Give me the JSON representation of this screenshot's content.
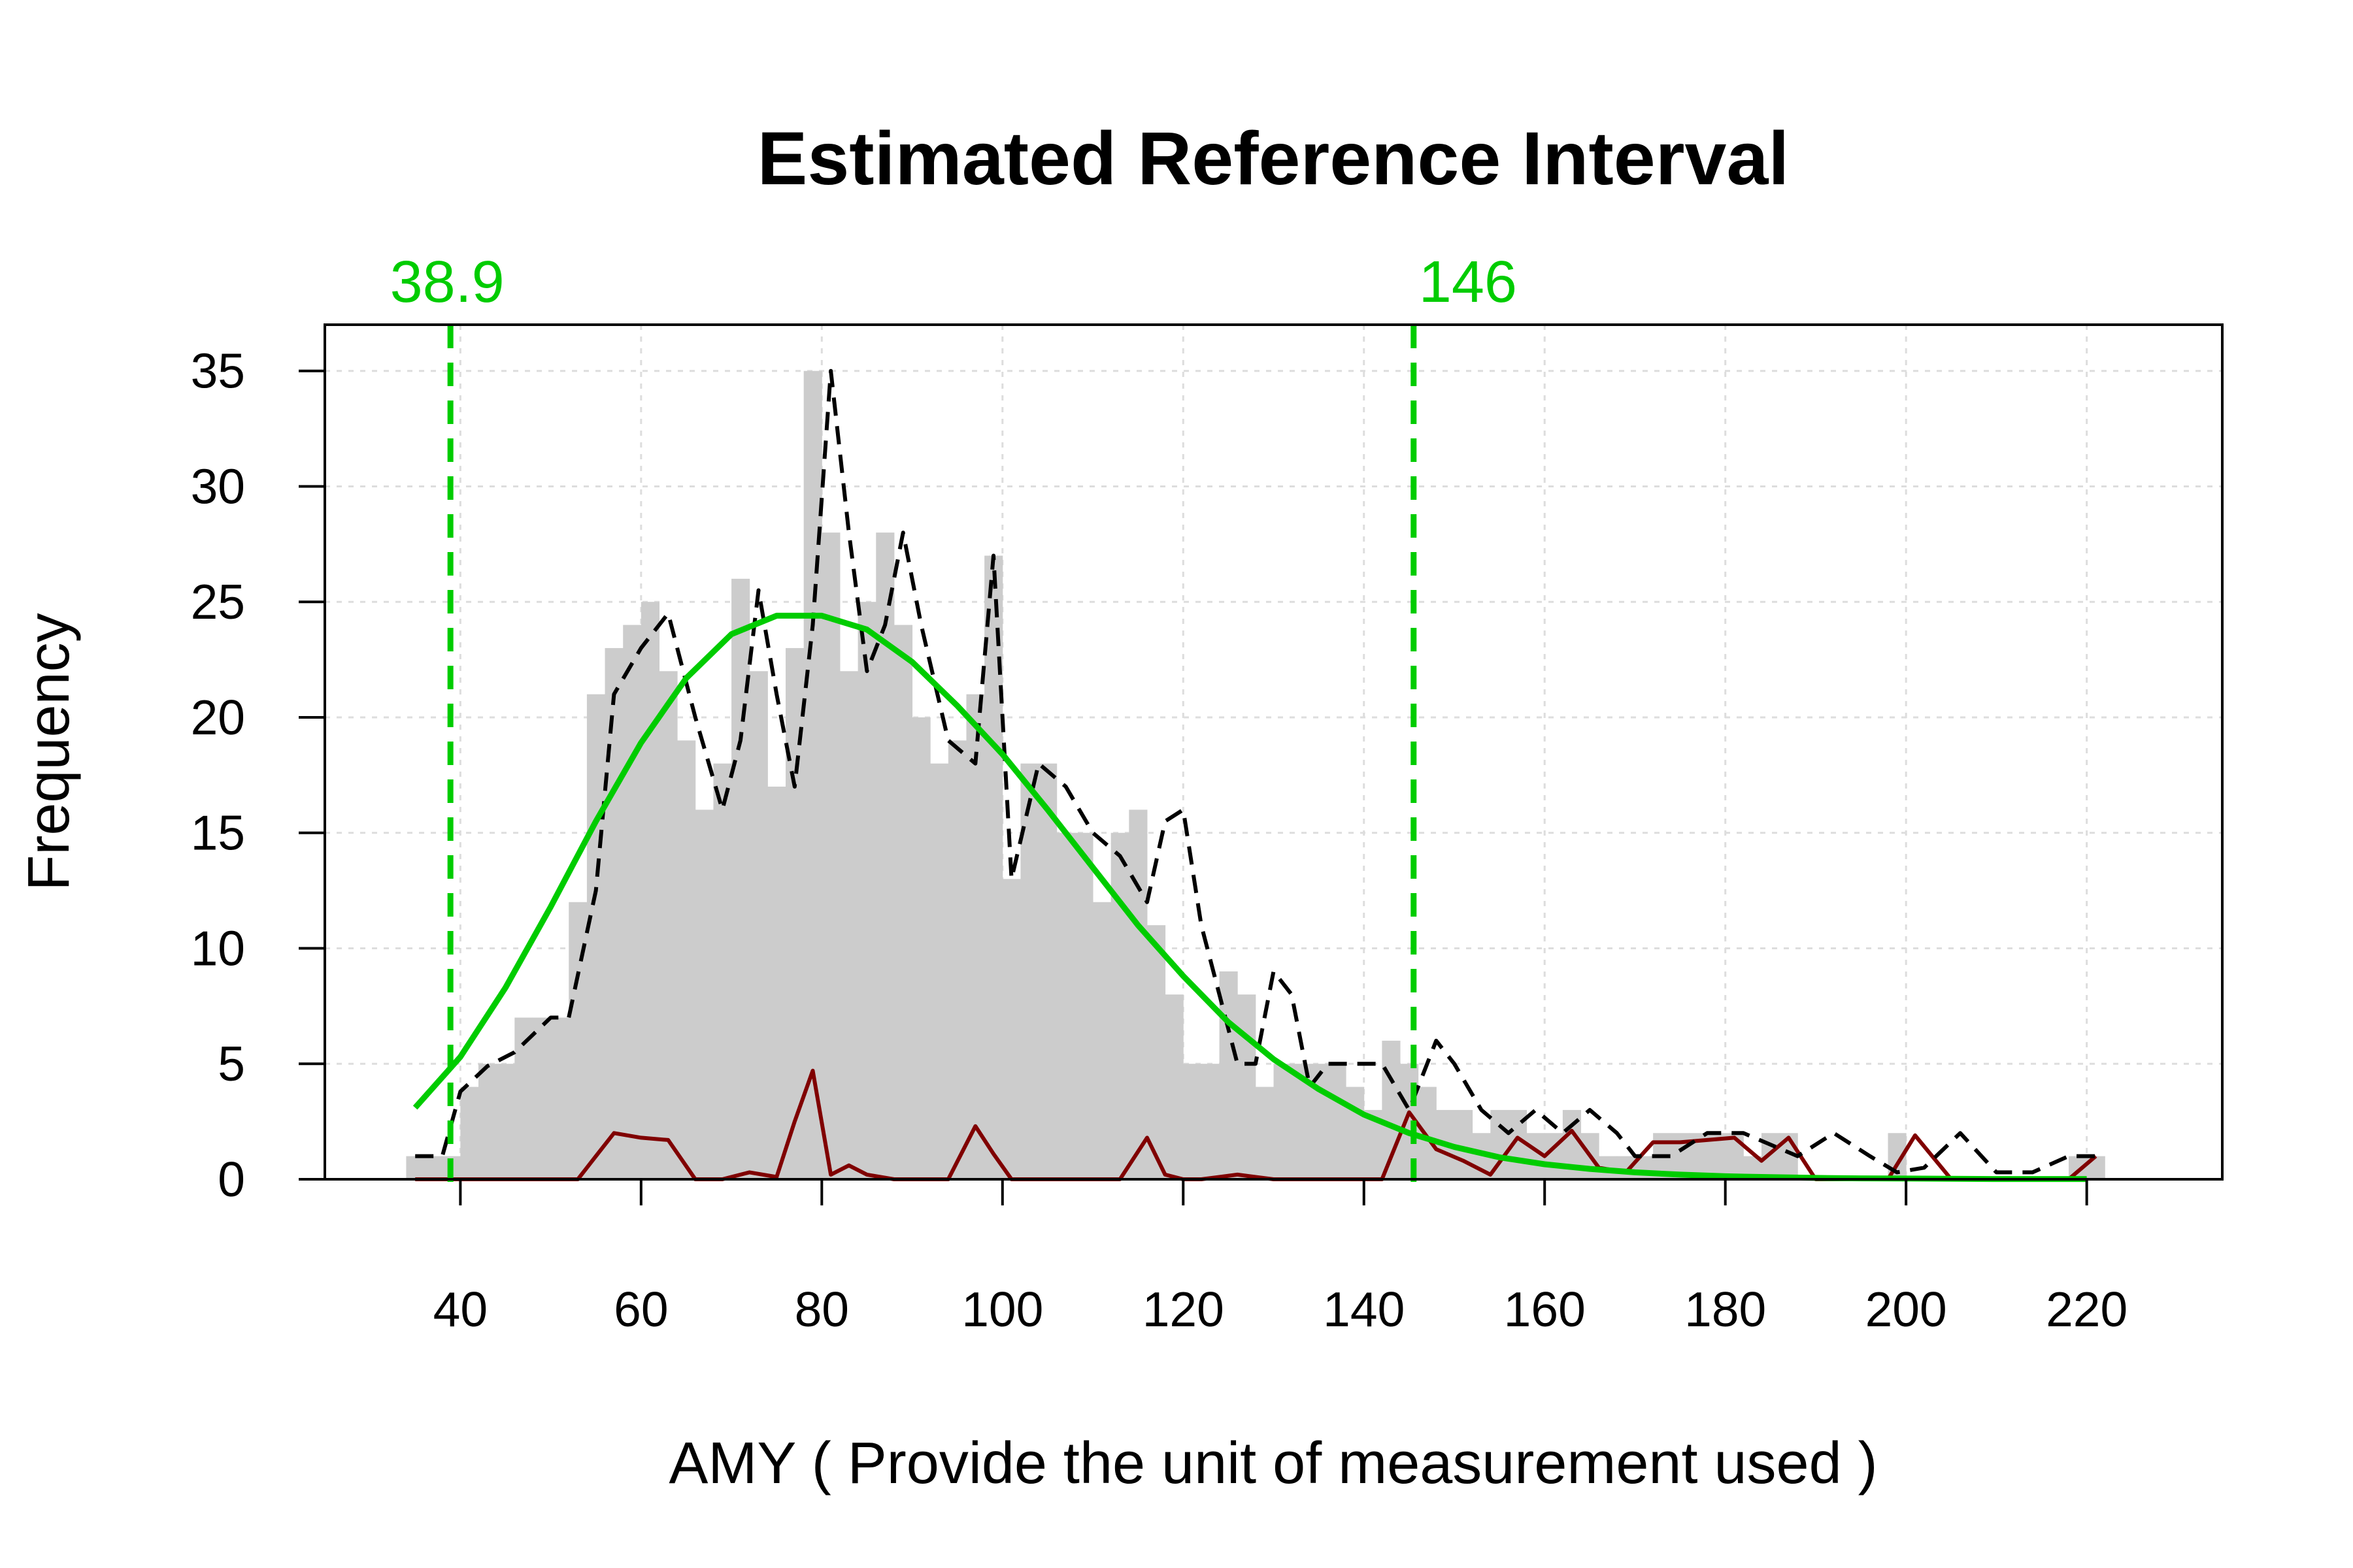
{
  "chart_data": {
    "type": "histogram",
    "title": "Estimated Reference Interval",
    "xlabel": "AMY ( Provide the unit of measurement used )",
    "ylabel": "Frequency",
    "xlim": [
      25,
      235
    ],
    "ylim": [
      0,
      37
    ],
    "x_ticks": [
      40,
      60,
      80,
      100,
      120,
      140,
      160,
      180,
      200,
      220
    ],
    "y_ticks": [
      0,
      5,
      10,
      15,
      20,
      25,
      30,
      35
    ],
    "grid": true,
    "bin_width": 2,
    "colors": {
      "bars": "#cccccc",
      "density": "#000000",
      "fit": "#00cc00",
      "residual": "#800000",
      "limits": "#00cc00"
    },
    "histogram": {
      "bin_centers": [
        35,
        37,
        39,
        41,
        43,
        45,
        47,
        49,
        51,
        53,
        55,
        57,
        59,
        61,
        63,
        65,
        67,
        69,
        71,
        73,
        75,
        77,
        79,
        81,
        83,
        85,
        87,
        89,
        91,
        93,
        95,
        97,
        99,
        101,
        103,
        105,
        107,
        109,
        111,
        113,
        115,
        117,
        119,
        121,
        123,
        125,
        127,
        129,
        131,
        133,
        135,
        137,
        139,
        141,
        143,
        145,
        147,
        149,
        151,
        153,
        155,
        157,
        159,
        161,
        163,
        165,
        167,
        169,
        171,
        173,
        175,
        177,
        179,
        181,
        183,
        185,
        187,
        189,
        191,
        193,
        195,
        197,
        199,
        201,
        203,
        205,
        207,
        209,
        211,
        213,
        215,
        217,
        219,
        221
      ],
      "counts": [
        1,
        1,
        1,
        4,
        5,
        5,
        7,
        7,
        7,
        12,
        21,
        23,
        24,
        25,
        22,
        19,
        16,
        18,
        26,
        22,
        17,
        23,
        35,
        28,
        22,
        25,
        28,
        24,
        20,
        18,
        19,
        21,
        27,
        13,
        18,
        18,
        15,
        15,
        12,
        15,
        16,
        11,
        8,
        5,
        5,
        9,
        8,
        4,
        5,
        5,
        5,
        5,
        4,
        3,
        6,
        5,
        4,
        3,
        3,
        2,
        3,
        3,
        2,
        2,
        3,
        2,
        1,
        1,
        1,
        2,
        2,
        2,
        2,
        2,
        1,
        2,
        2,
        0,
        0,
        0,
        0,
        0,
        2,
        0,
        0,
        0,
        0,
        0,
        0,
        0,
        0,
        0,
        1,
        1
      ]
    },
    "density_line": {
      "name": "",
      "x": [
        35,
        38,
        40,
        43,
        46,
        50,
        52,
        55,
        57,
        60,
        63,
        66,
        69,
        71,
        73,
        75,
        77,
        79,
        81,
        83,
        85,
        87,
        89,
        91,
        94,
        97,
        99,
        101,
        104,
        107,
        110,
        113,
        116,
        118,
        120,
        122,
        124,
        126,
        128,
        130,
        132,
        134,
        136,
        138,
        140,
        142,
        145,
        148,
        150,
        153,
        156,
        159,
        162,
        165,
        168,
        170,
        174,
        178,
        182,
        185,
        188,
        192,
        196,
        199,
        202,
        206,
        210,
        214,
        218,
        221
      ],
      "y": [
        1,
        1,
        3.8,
        4.9,
        5.5,
        7,
        7,
        12.5,
        21,
        23,
        24.5,
        20,
        16,
        19,
        25.5,
        21,
        17,
        24,
        35,
        28,
        22,
        24,
        28,
        24,
        19,
        18,
        27,
        13,
        18,
        17,
        15,
        14,
        12,
        15.5,
        16,
        11,
        8,
        5,
        5,
        9,
        8,
        4,
        5,
        5,
        5,
        5,
        3,
        6,
        5,
        3,
        2,
        3,
        2,
        3,
        2,
        1,
        1,
        2,
        2,
        1.5,
        1,
        2,
        1,
        0.3,
        0.5,
        2,
        0.3,
        0.3,
        1,
        1
      ]
    },
    "fit_curve": {
      "name": "",
      "x": [
        35,
        40,
        45,
        50,
        55,
        60,
        65,
        70,
        75,
        80,
        85,
        90,
        95,
        100,
        105,
        110,
        115,
        120,
        125,
        130,
        135,
        140,
        145,
        150,
        155,
        160,
        165,
        170,
        175,
        180,
        185,
        190,
        195,
        200,
        205,
        210,
        215,
        220
      ],
      "y": [
        3.1,
        5.3,
        8.3,
        11.8,
        15.5,
        18.9,
        21.7,
        23.6,
        24.4,
        24.4,
        23.8,
        22.4,
        20.5,
        18.4,
        16.0,
        13.5,
        11.0,
        8.8,
        6.8,
        5.2,
        3.9,
        2.8,
        2.0,
        1.4,
        0.95,
        0.65,
        0.45,
        0.3,
        0.2,
        0.13,
        0.09,
        0.06,
        0.04,
        0.03,
        0.02,
        0.01,
        0.01,
        0.01
      ]
    },
    "residual_line": {
      "name": "",
      "x": [
        35,
        40,
        45,
        50,
        53,
        55,
        57,
        60,
        63,
        66,
        69,
        72,
        75,
        77,
        79,
        81,
        83,
        85,
        88,
        91,
        94,
        97,
        99,
        101,
        104,
        107,
        110,
        113,
        116,
        118,
        120,
        122,
        124,
        126,
        128,
        130,
        133,
        136,
        139,
        142,
        145,
        148,
        151,
        154,
        157,
        160,
        163,
        166,
        169,
        172,
        175,
        178,
        181,
        184,
        187,
        190,
        194,
        198,
        201,
        205,
        210,
        215,
        218,
        221
      ],
      "y": [
        0,
        0,
        0,
        0,
        0,
        1,
        2,
        1.8,
        1.7,
        0,
        0,
        0.3,
        0.1,
        2.5,
        4.7,
        0.2,
        0.6,
        0.2,
        0,
        0,
        0,
        2.3,
        1.1,
        0,
        0,
        0,
        0,
        0,
        1.8,
        0.2,
        0,
        0,
        0.1,
        0.2,
        0.1,
        0,
        0,
        0,
        0,
        0,
        2.9,
        1.3,
        0.8,
        0.2,
        1.8,
        1,
        2.1,
        0.5,
        0.3,
        1.6,
        1.6,
        1.7,
        1.8,
        0.8,
        1.8,
        0,
        0,
        0,
        1.9,
        0,
        0,
        0,
        0,
        1
      ]
    },
    "reference_limits": [
      {
        "value": 38.9,
        "label": "38.9"
      },
      {
        "value": 145.5,
        "label": "146"
      }
    ]
  }
}
